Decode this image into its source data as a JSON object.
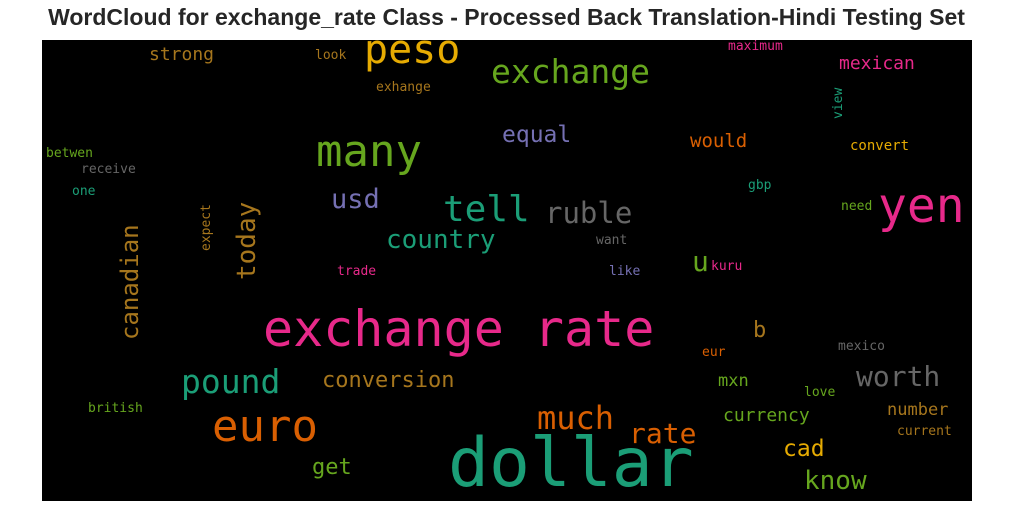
{
  "title": "WordCloud for exchange_rate Class - Processed Back Translation-Hindi Testing Set",
  "palette": {
    "background": "#000000",
    "pink": "#e7298a",
    "green": "#1b9e77",
    "orange": "#d95f02",
    "lime": "#66a61e",
    "gold": "#e6ab02",
    "purple": "#7570b3",
    "brown": "#a6761d",
    "gray": "#666666"
  },
  "words": {
    "exchange_rate": "exchange rate",
    "dollar": "dollar",
    "peso": "peso",
    "exchange": "exchange",
    "many": "many",
    "yen": "yen",
    "euro": "euro",
    "tell": "tell",
    "ruble": "ruble",
    "usd": "usd",
    "country": "country",
    "pound": "pound",
    "much": "much",
    "today": "today",
    "canadian": "canadian",
    "worth": "worth",
    "rate": "rate",
    "conversion": "conversion",
    "equal": "equal",
    "know": "know",
    "cad": "cad",
    "get": "get",
    "u": "u",
    "currency": "currency",
    "would": "would",
    "mexican": "mexican",
    "strong": "strong",
    "number": "number",
    "b": "b",
    "mxn": "mxn",
    "convert": "convert",
    "look": "look",
    "exhange": "exhange",
    "maximum": "maximum",
    "view": "view",
    "betwen": "betwen",
    "receive": "receive",
    "one": "one",
    "expect": "expect",
    "want": "want",
    "gbp": "gbp",
    "need": "need",
    "trade": "trade",
    "like": "like",
    "kuru": "kuru",
    "eur": "eur",
    "mexico": "mexico",
    "love": "love",
    "british": "british",
    "current": "current"
  }
}
